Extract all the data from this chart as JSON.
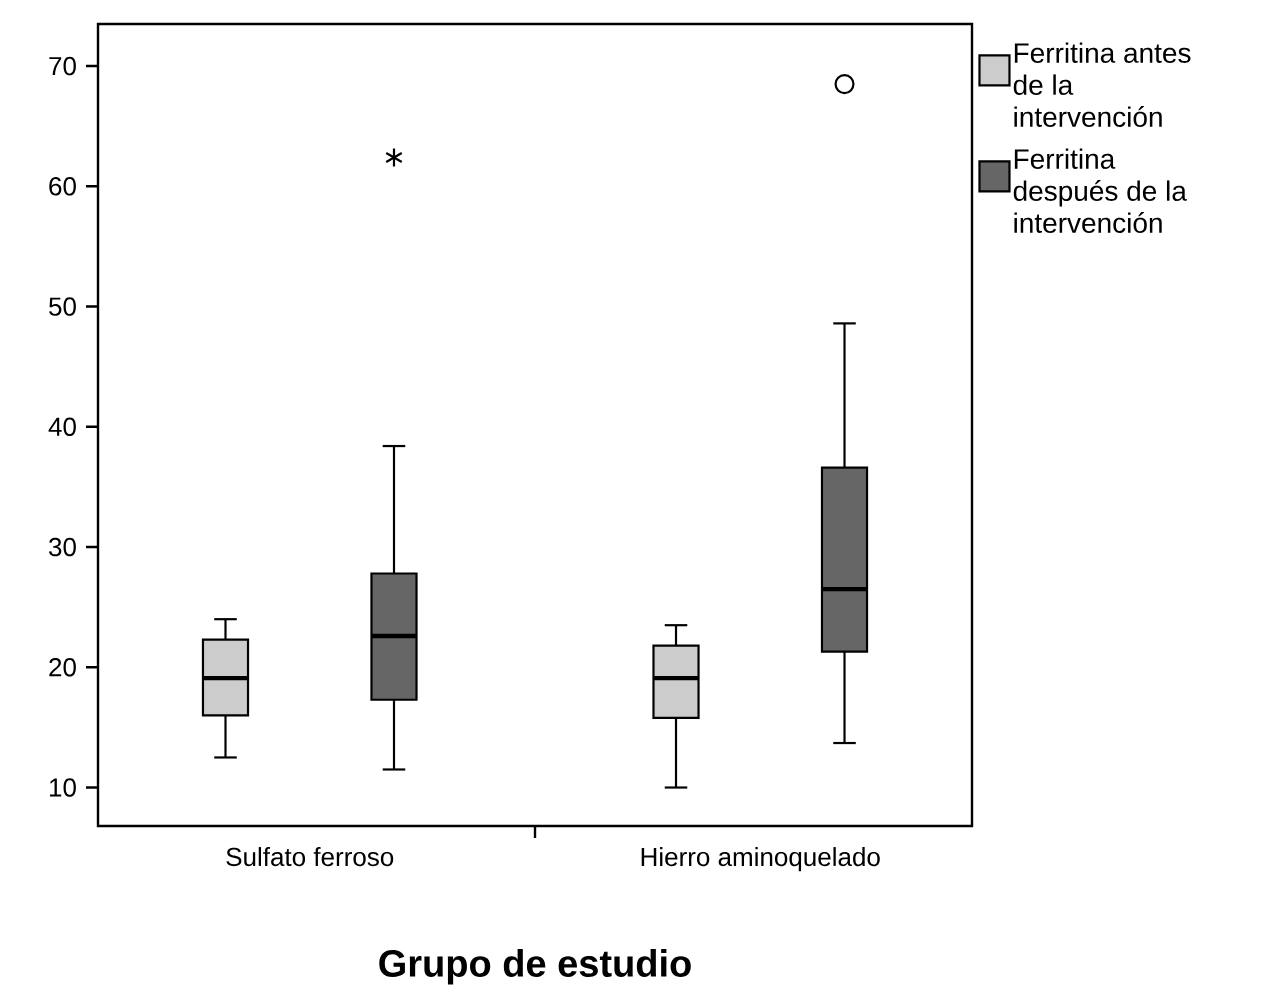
{
  "chart_data": {
    "type": "box",
    "xlabel": "Grupo de estudio",
    "categories": [
      "Sulfato ferroso",
      "Hierro aminoquelado"
    ],
    "ylim": [
      6.8,
      73.5
    ],
    "yticks": [
      10,
      20,
      30,
      40,
      50,
      60,
      70
    ],
    "legend": "right",
    "series": [
      {
        "name": "Ferritina antes de la intervención",
        "color": "#cccccc",
        "boxes": [
          {
            "low": 12.5,
            "q1": 16,
            "median": 19.1,
            "q3": 22.3,
            "high": 24
          },
          {
            "low": 10,
            "q1": 15.8,
            "median": 19.1,
            "q3": 21.8,
            "high": 23.5
          }
        ]
      },
      {
        "name": "Ferritina después de la intervención",
        "color": "#666666",
        "boxes": [
          {
            "low": 11.5,
            "q1": 17.3,
            "median": 22.6,
            "q3": 27.8,
            "high": 38.4,
            "outliers": [
              62.4
            ]
          },
          {
            "low": 13.7,
            "q1": 21.3,
            "median": 26.5,
            "q3": 36.6,
            "high": 48.6,
            "outliers": [
              68.5
            ]
          }
        ]
      }
    ]
  }
}
